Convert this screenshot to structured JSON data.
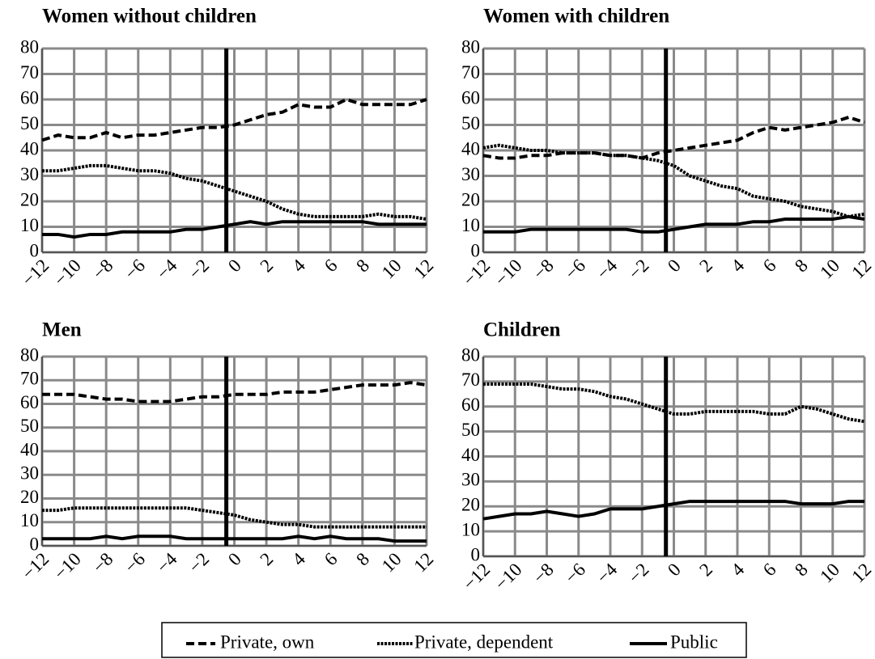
{
  "chart_data": [
    {
      "type": "line",
      "title": "Women without children",
      "x": [
        -12,
        -11,
        -10,
        -9,
        -8,
        -7,
        -6,
        -5,
        -4,
        -3,
        -2,
        -1,
        0,
        1,
        2,
        3,
        4,
        5,
        6,
        7,
        8,
        9,
        10,
        11,
        12
      ],
      "xlim": [
        -12,
        12
      ],
      "ylim": [
        0,
        80
      ],
      "yticks": [
        0,
        10,
        20,
        30,
        40,
        50,
        60,
        70,
        80
      ],
      "xticks": [
        {
          "value": -12,
          "label": "−12"
        },
        {
          "value": -10,
          "label": "−10"
        },
        {
          "value": -8,
          "label": "−8"
        },
        {
          "value": -6,
          "label": "−6"
        },
        {
          "value": -4,
          "label": "−4"
        },
        {
          "value": -2,
          "label": "−2"
        },
        0,
        2,
        4,
        6,
        8,
        10,
        12
      ],
      "grid": true,
      "vline": -0.5,
      "series": [
        {
          "name": "Private, own",
          "color": "#000000",
          "style": "dashed",
          "values": [
            44,
            46,
            45,
            45,
            47,
            45,
            46,
            46,
            47,
            48,
            49,
            49,
            50,
            52,
            54,
            55,
            58,
            57,
            57,
            60,
            58,
            58,
            58,
            58,
            60
          ]
        },
        {
          "name": "Private, dependent",
          "color": "#000000",
          "style": "dotted",
          "values": [
            32,
            32,
            33,
            34,
            34,
            33,
            32,
            32,
            31,
            29,
            28,
            26,
            24,
            22,
            20,
            17,
            15,
            14,
            14,
            14,
            14,
            15,
            14,
            14,
            13
          ]
        },
        {
          "name": "Public",
          "color": "#000000",
          "style": "solid",
          "values": [
            7,
            7,
            6,
            7,
            7,
            8,
            8,
            8,
            8,
            9,
            9,
            10,
            11,
            12,
            11,
            12,
            12,
            12,
            12,
            12,
            12,
            11,
            11,
            11,
            11
          ]
        }
      ]
    },
    {
      "type": "line",
      "title": "Women with children",
      "x": [
        -12,
        -11,
        -10,
        -9,
        -8,
        -7,
        -6,
        -5,
        -4,
        -3,
        -2,
        -1,
        0,
        1,
        2,
        3,
        4,
        5,
        6,
        7,
        8,
        9,
        10,
        11,
        12
      ],
      "xlim": [
        -12,
        12
      ],
      "ylim": [
        0,
        80
      ],
      "yticks": [
        0,
        10,
        20,
        30,
        40,
        50,
        60,
        70,
        80
      ],
      "xticks": [
        {
          "value": -12,
          "label": "−12"
        },
        {
          "value": -10,
          "label": "−10"
        },
        {
          "value": -8,
          "label": "−8"
        },
        {
          "value": -6,
          "label": "−6"
        },
        {
          "value": -4,
          "label": "−4"
        },
        {
          "value": -2,
          "label": "−2"
        },
        0,
        2,
        4,
        6,
        8,
        10,
        12
      ],
      "grid": true,
      "vline": -0.5,
      "series": [
        {
          "name": "Private, own",
          "color": "#000000",
          "style": "dashed",
          "values": [
            38,
            37,
            37,
            38,
            38,
            39,
            39,
            39,
            38,
            38,
            37,
            39,
            40,
            41,
            42,
            43,
            44,
            47,
            49,
            48,
            49,
            50,
            51,
            53,
            51
          ]
        },
        {
          "name": "Private, dependent",
          "color": "#000000",
          "style": "dotted",
          "values": [
            41,
            42,
            41,
            40,
            40,
            39,
            39,
            39,
            38,
            38,
            37,
            36,
            34,
            30,
            28,
            26,
            25,
            22,
            21,
            20,
            18,
            17,
            16,
            14,
            15
          ]
        },
        {
          "name": "Public",
          "color": "#000000",
          "style": "solid",
          "values": [
            8,
            8,
            8,
            9,
            9,
            9,
            9,
            9,
            9,
            9,
            8,
            8,
            9,
            10,
            11,
            11,
            11,
            12,
            12,
            13,
            13,
            13,
            13,
            14,
            13
          ]
        }
      ]
    },
    {
      "type": "line",
      "title": "Men",
      "x": [
        -12,
        -11,
        -10,
        -9,
        -8,
        -7,
        -6,
        -5,
        -4,
        -3,
        -2,
        -1,
        0,
        1,
        2,
        3,
        4,
        5,
        6,
        7,
        8,
        9,
        10,
        11,
        12
      ],
      "xlim": [
        -12,
        12
      ],
      "ylim": [
        0,
        80
      ],
      "yticks": [
        0,
        10,
        20,
        30,
        40,
        50,
        60,
        70,
        80
      ],
      "xticks": [
        {
          "value": -12,
          "label": "−12"
        },
        {
          "value": -10,
          "label": "−10"
        },
        {
          "value": -8,
          "label": "−8"
        },
        {
          "value": -6,
          "label": "−6"
        },
        {
          "value": -4,
          "label": "−4"
        },
        {
          "value": -2,
          "label": "−2"
        },
        0,
        2,
        4,
        6,
        8,
        10,
        12
      ],
      "grid": true,
      "vline": -0.5,
      "series": [
        {
          "name": "Private, own",
          "color": "#000000",
          "style": "dashed",
          "values": [
            64,
            64,
            64,
            63,
            62,
            62,
            61,
            61,
            61,
            62,
            63,
            63,
            64,
            64,
            64,
            65,
            65,
            65,
            66,
            67,
            68,
            68,
            68,
            69,
            68
          ]
        },
        {
          "name": "Private, dependent",
          "color": "#000000",
          "style": "dotted",
          "values": [
            15,
            15,
            16,
            16,
            16,
            16,
            16,
            16,
            16,
            16,
            15,
            14,
            13,
            11,
            10,
            9,
            9,
            8,
            8,
            8,
            8,
            8,
            8,
            8,
            8
          ]
        },
        {
          "name": "Public",
          "color": "#000000",
          "style": "solid",
          "values": [
            3,
            3,
            3,
            3,
            4,
            3,
            4,
            4,
            4,
            3,
            3,
            3,
            3,
            3,
            3,
            3,
            4,
            3,
            4,
            3,
            3,
            3,
            2,
            2,
            2
          ]
        }
      ]
    },
    {
      "type": "line",
      "title": "Children",
      "x": [
        -12,
        -11,
        -10,
        -9,
        -8,
        -7,
        -6,
        -5,
        -4,
        -3,
        -2,
        -1,
        0,
        1,
        2,
        3,
        4,
        5,
        6,
        7,
        8,
        9,
        10,
        11,
        12
      ],
      "xlim": [
        -12,
        12
      ],
      "ylim": [
        0,
        80
      ],
      "yticks": [
        0,
        10,
        20,
        30,
        40,
        50,
        60,
        70,
        80
      ],
      "xticks": [
        {
          "value": -12,
          "label": "−12"
        },
        {
          "value": -10,
          "label": "−10"
        },
        {
          "value": -8,
          "label": "−8"
        },
        {
          "value": -6,
          "label": "−6"
        },
        {
          "value": -4,
          "label": "−4"
        },
        {
          "value": -2,
          "label": "−2"
        },
        0,
        2,
        4,
        6,
        8,
        10,
        12
      ],
      "grid": true,
      "vline": -0.5,
      "series": [
        {
          "name": "Private, dependent",
          "color": "#000000",
          "style": "dotted",
          "values": [
            69,
            69,
            69,
            69,
            68,
            67,
            67,
            66,
            64,
            63,
            61,
            59,
            57,
            57,
            58,
            58,
            58,
            58,
            57,
            57,
            60,
            59,
            57,
            55,
            54
          ]
        },
        {
          "name": "Public",
          "color": "#000000",
          "style": "solid",
          "values": [
            15,
            16,
            17,
            17,
            18,
            17,
            16,
            17,
            19,
            19,
            19,
            20,
            21,
            22,
            22,
            22,
            22,
            22,
            22,
            22,
            21,
            21,
            21,
            22,
            22
          ]
        }
      ]
    }
  ]
}
